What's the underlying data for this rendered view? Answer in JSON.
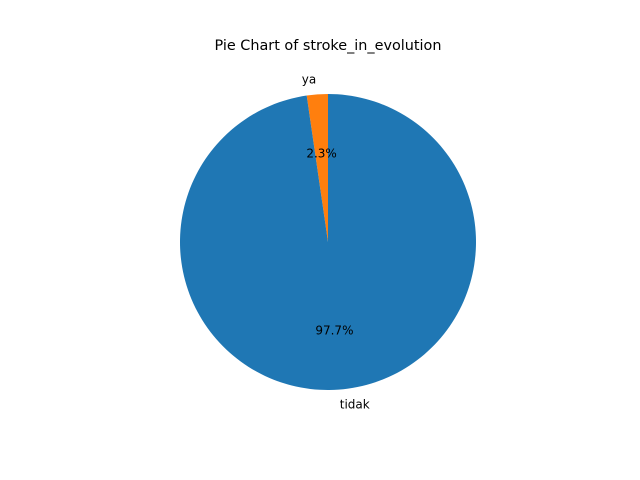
{
  "chart_data": {
    "type": "pie",
    "title": "Pie Chart of stroke_in_evolution",
    "labels": [
      "ya",
      "tidak"
    ],
    "values": [
      2.3,
      97.7
    ],
    "percent_labels": [
      "2.3%",
      "97.7%"
    ],
    "colors": [
      "#ff7f0e",
      "#1f77b4"
    ],
    "start_angle_deg": 90,
    "direction": "counterclockwise",
    "legend": "none"
  }
}
